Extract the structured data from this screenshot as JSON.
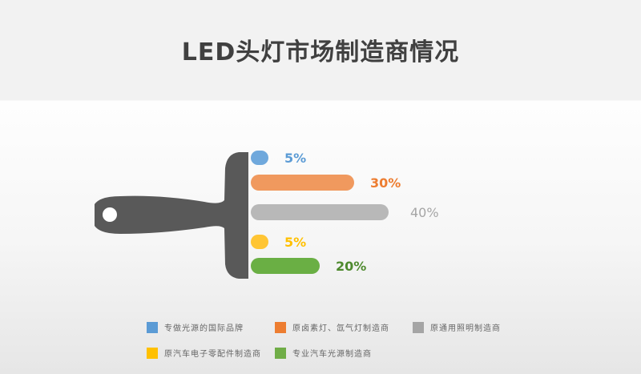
{
  "chart_data": {
    "type": "bar",
    "orientation": "horizontal",
    "title": "LED头灯市场制造商情况",
    "categories": [
      "专做光源的国际品牌",
      "原卤素灯、氙气灯制造商",
      "原通用照明制造商",
      "原汽车电子零配件制造商",
      "专业汽车光源制造商"
    ],
    "values": [
      5,
      30,
      40,
      5,
      20
    ],
    "labels": [
      "5%",
      "30%",
      "40%",
      "5%",
      "20%"
    ],
    "colors": [
      "#6fa8dc",
      "#f0995e",
      "#b8b8b8",
      "#ffc534",
      "#6aaf44"
    ],
    "label_colors": [
      "#5b9bd5",
      "#ed7d31",
      "#a5a5a5",
      "#ffc000",
      "#4e8a2e"
    ],
    "legend_colors": [
      "#5b9bd5",
      "#ed7d31",
      "#a5a5a5",
      "#ffc000",
      "#70ad47"
    ],
    "legend": "bottom",
    "decoration": "paintbrush-handle"
  }
}
